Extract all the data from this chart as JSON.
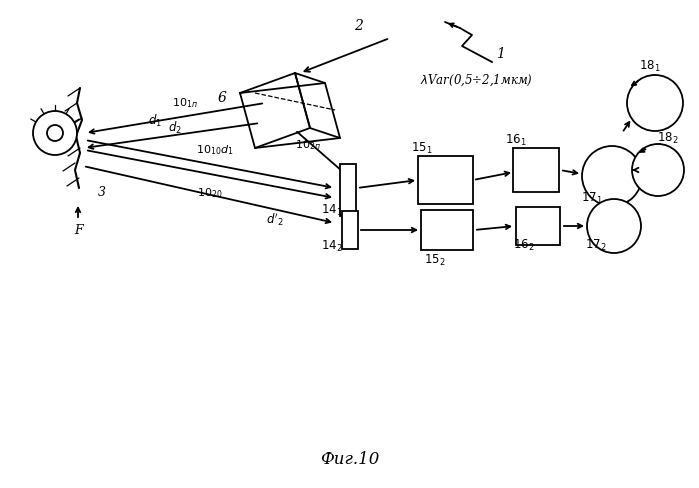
{
  "bg_color": "#ffffff",
  "lw": 1.3,
  "fs": 9
}
